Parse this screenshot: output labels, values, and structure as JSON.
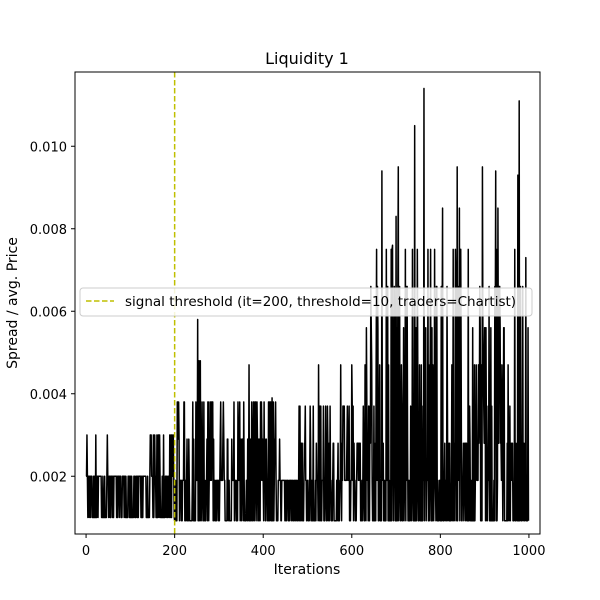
{
  "chart_data": {
    "type": "line",
    "title": "Liquidity 1",
    "xlabel": "Iterations",
    "ylabel": "Spread / avg. Price",
    "xlim": [
      -25,
      1025
    ],
    "ylim": [
      0.0006,
      0.0118
    ],
    "xticks": [
      0,
      200,
      400,
      600,
      800,
      1000
    ],
    "yticks": [
      0.002,
      0.004,
      0.006,
      0.008,
      0.01
    ],
    "ytick_labels": [
      "0.002",
      "0.004",
      "0.006",
      "0.008",
      "0.010"
    ],
    "grid": false,
    "legend_position": "center-left",
    "line_color": "#000000",
    "threshold": {
      "label": "signal threshold (it=200, threshold=10, traders=Chartist)",
      "x": 200,
      "color": "#bfbf00",
      "style": "dashed"
    },
    "series": [
      {
        "x_start": 0,
        "x_end": 999,
        "baseline": 0.001,
        "baseline_late": 0.00092,
        "segments": [
          {
            "from": 0,
            "to": 140,
            "levels": [
              0.001,
              0.002
            ],
            "spikes": [
              [
                2,
                0.003
              ],
              [
                22,
                0.003
              ],
              [
                48,
                0.003
              ]
            ]
          },
          {
            "from": 140,
            "to": 200,
            "levels": [
              0.001,
              0.002,
              0.003
            ]
          },
          {
            "from": 200,
            "to": 440,
            "levels": [
              0.00092,
              0.0019,
              0.0029,
              0.0038
            ],
            "spikes": [
              [
                252,
                0.0058
              ],
              [
                255,
                0.0048
              ],
              [
                258,
                0.0048
              ],
              [
                368,
                0.0047
              ],
              [
                420,
                0.0039
              ]
            ]
          },
          {
            "from": 440,
            "to": 480,
            "levels": [
              0.00092,
              0.0019
            ]
          },
          {
            "from": 480,
            "to": 630,
            "levels": [
              0.00092,
              0.0019,
              0.0028,
              0.0037
            ],
            "spikes": [
              [
                525,
                0.0047
              ],
              [
                575,
                0.0047
              ],
              [
                600,
                0.0047
              ]
            ]
          },
          {
            "from": 630,
            "to": 999,
            "levels": [
              0.00092,
              0.0019,
              0.0028,
              0.0037,
              0.0047,
              0.0056,
              0.0066,
              0.0075
            ],
            "spikes": [
              [
                668,
                0.0094
              ],
              [
                692,
                0.0076
              ],
              [
                700,
                0.0083
              ],
              [
                705,
                0.0095
              ],
              [
                742,
                0.0105
              ],
              [
                763,
                0.0114
              ],
              [
                805,
                0.0085
              ],
              [
                838,
                0.0095
              ],
              [
                843,
                0.0085
              ],
              [
                895,
                0.0095
              ],
              [
                925,
                0.0094
              ],
              [
                930,
                0.0085
              ],
              [
                975,
                0.0093
              ],
              [
                978,
                0.0111
              ],
              [
                993,
                0.0073
              ]
            ]
          }
        ]
      }
    ]
  }
}
